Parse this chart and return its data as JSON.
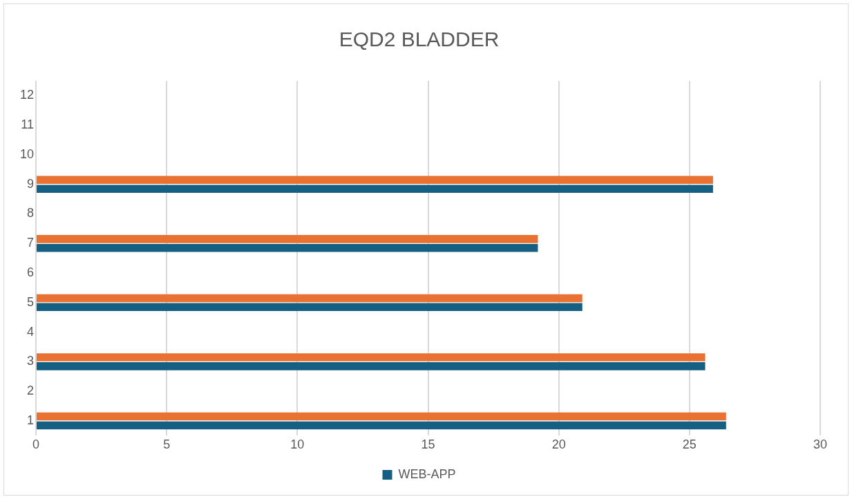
{
  "chart_data": {
    "type": "bar",
    "orientation": "horizontal",
    "title": "EQD2 BLADDER",
    "categories": [
      "12",
      "11",
      "10",
      "9",
      "8",
      "7",
      "6",
      "5",
      "4",
      "3",
      "2",
      "1"
    ],
    "series": [
      {
        "color": "#e97132",
        "values": [
          null,
          null,
          null,
          25.9,
          null,
          19.2,
          null,
          20.9,
          null,
          25.6,
          null,
          26.4
        ]
      },
      {
        "name": "WEB-APP",
        "color": "#156082",
        "values": [
          null,
          null,
          null,
          25.9,
          null,
          19.2,
          null,
          20.9,
          null,
          25.6,
          null,
          26.4
        ]
      }
    ],
    "xlim": [
      0,
      30
    ],
    "xticks": [
      0,
      5,
      10,
      15,
      20,
      25,
      30
    ],
    "grid": "x",
    "legend": "bottom"
  }
}
